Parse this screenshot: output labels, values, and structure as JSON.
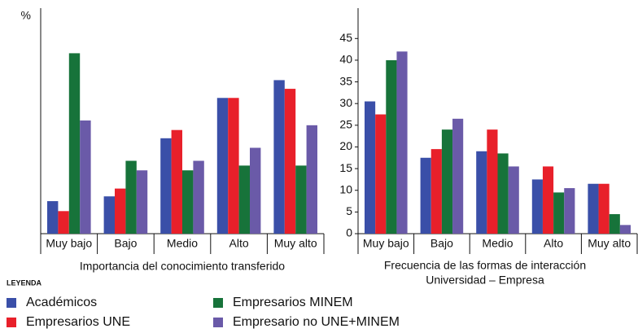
{
  "legend_title": "LEYENDA",
  "chart_data": [
    {
      "type": "bar",
      "y_label": "%",
      "x_label": "Importancia del conocimiento transferido",
      "categories": [
        "Muy bajo",
        "Bajo",
        "Medio",
        "Alto",
        "Muy alto"
      ],
      "ylim": [
        0,
        52
      ],
      "series": [
        {
          "name": "Académicos",
          "color": "#3a4fa8",
          "values": [
            7.5,
            8.6,
            22,
            31.3,
            35.4
          ]
        },
        {
          "name": "Empresarios UNE",
          "color": "#e8202a",
          "values": [
            5.2,
            10.4,
            23.9,
            31.3,
            33.4
          ]
        },
        {
          "name": "Empresarios MINEM",
          "color": "#17733a",
          "values": [
            41.6,
            16.8,
            14.6,
            15.7,
            15.7
          ]
        },
        {
          "name": "Empresario no UNE+MINEM",
          "color": "#6a5aa8",
          "values": [
            26.1,
            14.6,
            16.8,
            19.8,
            25
          ]
        }
      ]
    },
    {
      "type": "bar",
      "x_label": [
        "Frecuencia de las formas de interacción",
        "Universidad – Empresa"
      ],
      "categories": [
        "Muy bajo",
        "Bajo",
        "Medio",
        "Alto",
        "Muy alto"
      ],
      "ylim": [
        0,
        52
      ],
      "yticks": [
        0,
        5,
        10,
        15,
        20,
        25,
        30,
        35,
        40,
        45
      ],
      "series": [
        {
          "color": "#3a4fa8",
          "values": [
            30.5,
            17.5,
            19,
            12.5,
            11.5
          ]
        },
        {
          "color": "#e8202a",
          "values": [
            27.5,
            19.5,
            24,
            15.5,
            11.5
          ]
        },
        {
          "color": "#17733a",
          "values": [
            40,
            24,
            18.5,
            9.5,
            4.5
          ]
        },
        {
          "color": "#6a5aa8",
          "values": [
            42,
            26.5,
            15.5,
            10.5,
            2
          ]
        }
      ]
    }
  ]
}
